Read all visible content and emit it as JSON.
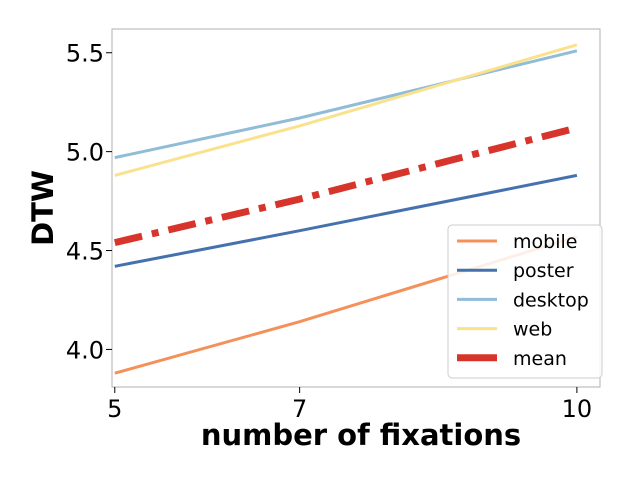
{
  "chart_data": {
    "type": "line",
    "title": "",
    "xlabel": "number of fixations",
    "ylabel": "DTW",
    "x": [
      5,
      7,
      10
    ],
    "xlim": [
      4.97,
      10.25
    ],
    "ylim": [
      3.81,
      5.62
    ],
    "xticks": [
      5,
      7,
      10
    ],
    "yticks": [
      4.0,
      4.5,
      5.0,
      5.5
    ],
    "ytick_labels": [
      "4.0",
      "4.5",
      "5.0",
      "5.5"
    ],
    "grid": false,
    "legend_position": "lower-right",
    "series": [
      {
        "name": "mobile",
        "values": [
          3.88,
          4.14,
          4.57
        ],
        "color": "#f4915b",
        "style": "solid"
      },
      {
        "name": "poster",
        "values": [
          4.42,
          4.6,
          4.88
        ],
        "color": "#4571ae",
        "style": "solid"
      },
      {
        "name": "desktop",
        "values": [
          4.97,
          5.17,
          5.51
        ],
        "color": "#90bcd8",
        "style": "solid"
      },
      {
        "name": "web",
        "values": [
          4.88,
          5.13,
          5.54
        ],
        "color": "#fae28d",
        "style": "solid"
      },
      {
        "name": "mean",
        "values": [
          4.54,
          4.76,
          5.12
        ],
        "color": "#d7352c",
        "style": "dashdot"
      }
    ]
  }
}
